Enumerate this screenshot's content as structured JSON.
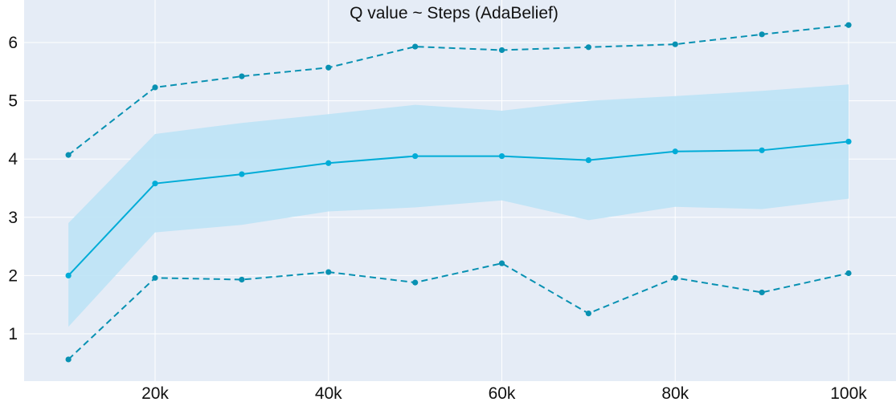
{
  "chart_data": {
    "type": "line",
    "title": "Q value ~ Steps (AdaBelief)",
    "xlabel": "",
    "ylabel": "",
    "x": [
      10000,
      20000,
      30000,
      40000,
      50000,
      60000,
      70000,
      80000,
      90000,
      100000
    ],
    "xlim": [
      5000,
      105000
    ],
    "ylim": [
      0.35,
      6.65
    ],
    "x_ticks": [
      20000,
      40000,
      60000,
      80000,
      100000
    ],
    "x_tick_labels": [
      "20k",
      "40k",
      "60k",
      "80k",
      "100k"
    ],
    "y_ticks": [
      1,
      2,
      3,
      4,
      5,
      6
    ],
    "y_tick_labels": [
      "1",
      "2",
      "3",
      "4",
      "5",
      "6"
    ],
    "grid": true,
    "series": [
      {
        "style": "solid",
        "color": "#00acd7",
        "values": [
          2.0,
          3.58,
          3.74,
          3.93,
          4.05,
          4.05,
          3.98,
          4.13,
          4.15,
          4.3
        ]
      },
      {
        "style": "band",
        "color": "#bde3f6",
        "lower": [
          1.12,
          2.74,
          2.87,
          3.1,
          3.17,
          3.29,
          2.95,
          3.18,
          3.14,
          3.32
        ],
        "upper": [
          2.9,
          4.43,
          4.62,
          4.77,
          4.93,
          4.83,
          5.0,
          5.08,
          5.17,
          5.28
        ]
      },
      {
        "style": "dashed",
        "color": "#0891b2",
        "values": [
          4.07,
          5.23,
          5.42,
          5.57,
          5.93,
          5.87,
          5.92,
          5.97,
          6.14,
          6.3
        ]
      },
      {
        "style": "dashed",
        "color": "#0891b2",
        "values": [
          0.56,
          1.96,
          1.93,
          2.06,
          1.88,
          2.21,
          1.35,
          1.96,
          1.71,
          2.04
        ]
      }
    ]
  }
}
